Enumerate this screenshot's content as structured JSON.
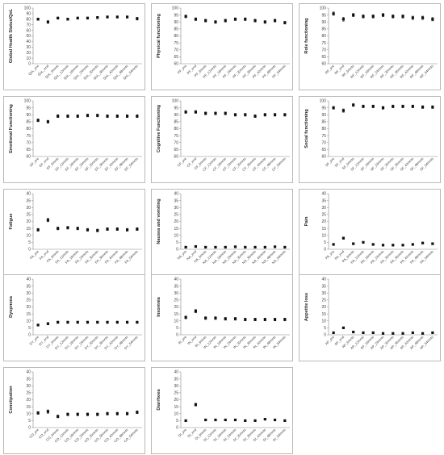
{
  "chart_data": [
    {
      "type": "scatter",
      "ylabel": "Global Health Status/QoL",
      "ylim": [
        0,
        100
      ],
      "yticks": [
        0,
        10,
        20,
        30,
        40,
        50,
        60,
        70,
        80,
        90,
        100
      ],
      "categories": [
        "QoL_pre",
        "QoL_end",
        "QoL_6mnts",
        "QoL_12mnts",
        "QoL_18mnts",
        "QoL_24mnts",
        "QoL_30mnts",
        "QoL_36mnts",
        "QoL_42mnts",
        "QoL_48mnts",
        "QoL_54mnts"
      ],
      "values": [
        80,
        75,
        82,
        80,
        82,
        82,
        83,
        84,
        84,
        84,
        81
      ],
      "err": [
        2,
        2.5,
        2,
        2,
        2,
        2,
        2,
        2,
        2,
        2,
        2.5
      ]
    },
    {
      "type": "scatter",
      "ylabel": "Physical functioning",
      "ylim": [
        60,
        100
      ],
      "yticks": [
        60,
        65,
        70,
        75,
        80,
        85,
        90,
        95,
        100
      ],
      "categories": [
        "PF_pre",
        "PF_end",
        "PF_6mnts",
        "PF_12mnts",
        "PF_18mnts",
        "PF_24mnts",
        "PF_30mnts",
        "PF_36mnts",
        "PF_42mnts",
        "PF_48mnts",
        "PF_54mnts"
      ],
      "values": [
        94,
        92,
        91,
        90,
        91,
        92,
        92,
        91,
        90,
        91,
        89.5
      ],
      "err": [
        1,
        1,
        1,
        1,
        1,
        1,
        1,
        1,
        1,
        1,
        1
      ]
    },
    {
      "type": "scatter",
      "ylabel": "Role functioning",
      "ylim": [
        60,
        100
      ],
      "yticks": [
        60,
        65,
        70,
        75,
        80,
        85,
        90,
        95,
        100
      ],
      "categories": [
        "RF_pre",
        "RF_end",
        "RF_6mnts",
        "RF_12mnts",
        "RF_18mnts",
        "RF_24mnts",
        "RF_30mnts",
        "RF_36mnts",
        "RF_42mnts",
        "RF_48mnts",
        "RF_54mnts"
      ],
      "values": [
        96,
        92,
        95,
        94,
        94,
        95,
        94,
        94,
        93,
        93,
        92
      ],
      "err": [
        1.2,
        1.4,
        1.2,
        1.2,
        1.2,
        1.2,
        1.2,
        1.2,
        1.2,
        1.2,
        1.2
      ]
    },
    {
      "type": "scatter",
      "ylabel": "Emotional Functioning",
      "ylim": [
        60,
        100
      ],
      "yticks": [
        60,
        65,
        70,
        75,
        80,
        85,
        90,
        95,
        100
      ],
      "categories": [
        "EF_pre",
        "EF_end",
        "EF_6mnts",
        "EF_12mnts",
        "EF_18mnts",
        "EF_24mnts",
        "EF_30mnts",
        "EF_36mnts",
        "EF_42mnts",
        "EF_48mnts",
        "EF_54mnts"
      ],
      "values": [
        86,
        85,
        89,
        89,
        89,
        89.5,
        89.5,
        89,
        89,
        89,
        89
      ],
      "err": [
        1,
        1,
        1,
        1,
        1,
        1,
        1,
        1,
        1,
        1,
        1
      ]
    },
    {
      "type": "scatter",
      "ylabel": "Cognitive Functioning",
      "ylim": [
        60,
        100
      ],
      "yticks": [
        60,
        65,
        70,
        75,
        80,
        85,
        90,
        95,
        100
      ],
      "categories": [
        "CF_pre",
        "CF_end",
        "CF_6mnts",
        "CF_12mnts",
        "CF_18mnts",
        "CF_24mnts",
        "CF_30mnts",
        "CF_36mnts",
        "CF_42mnts",
        "CF_48mnts",
        "CF_54mnts"
      ],
      "values": [
        92,
        92,
        91,
        91,
        91,
        90,
        90,
        89,
        90,
        90,
        90
      ],
      "err": [
        1,
        1,
        1,
        1,
        1,
        1,
        1,
        1,
        1,
        1,
        1
      ]
    },
    {
      "type": "scatter",
      "ylabel": "Social functioning",
      "ylim": [
        60,
        100
      ],
      "yticks": [
        60,
        65,
        70,
        75,
        80,
        85,
        90,
        95,
        100
      ],
      "categories": [
        "SF_pre",
        "SF_end",
        "SF_6mnts",
        "SF_12mnts",
        "SF_18mnts",
        "SF_24mnts",
        "SF_30mnts",
        "SF_36mnts",
        "SF_42mnts",
        "SF_48mnts",
        "SF_54mnts"
      ],
      "values": [
        95,
        93,
        97,
        96,
        96,
        95,
        96,
        96,
        96,
        95.5,
        95.5
      ],
      "err": [
        1,
        1.2,
        1,
        1,
        1,
        1,
        1,
        1,
        1,
        1,
        1
      ]
    },
    {
      "type": "scatter",
      "ylabel": "Fatigue",
      "ylim": [
        0,
        40
      ],
      "yticks": [
        0,
        5,
        10,
        15,
        20,
        25,
        30,
        35,
        40
      ],
      "categories": [
        "FA_pre",
        "FA_end",
        "FA_6mnts",
        "FA_12mnts",
        "FA_18mnts",
        "FA_24mnts",
        "FA_30mnts",
        "FA_36mnts",
        "FA_42mnts",
        "FA_48mnts",
        "FA_54mnts"
      ],
      "values": [
        14,
        21,
        15,
        15.5,
        15,
        14,
        13.5,
        14.5,
        14.5,
        14,
        14.5
      ],
      "err": [
        1,
        1.2,
        1,
        1,
        1,
        1,
        1,
        1,
        1,
        1,
        1
      ]
    },
    {
      "type": "scatter",
      "ylabel": "Nausea and vomiting",
      "ylim": [
        0,
        40
      ],
      "yticks": [
        0,
        5,
        10,
        15,
        20,
        25,
        30,
        35,
        40
      ],
      "categories": [
        "NA_pre",
        "NA_end",
        "NA_6mnts",
        "NA_12mnts",
        "NA_18mnts",
        "NA_24mnts",
        "NA_30mnts",
        "NA_36mnts",
        "NA_42mnts",
        "NA_48mnts",
        "NA_54mnts"
      ],
      "values": [
        1.5,
        2,
        1.5,
        1.5,
        1.5,
        1.8,
        1.5,
        1.5,
        1.5,
        1.8,
        1.5
      ],
      "err": [
        0.5,
        0.5,
        0.5,
        0.5,
        0.5,
        0.5,
        0.5,
        0.5,
        0.5,
        0.5,
        0.5
      ]
    },
    {
      "type": "scatter",
      "ylabel": "Pain",
      "ylim": [
        0,
        40
      ],
      "yticks": [
        0,
        5,
        10,
        15,
        20,
        25,
        30,
        35,
        40
      ],
      "categories": [
        "PA_pre",
        "PA_end",
        "PA_6mnts",
        "PA_12mnts",
        "PA_18mnts",
        "PA_24mnts",
        "PA_30mnts",
        "PA_36mnts",
        "PA_42mnts",
        "PA_48mnts",
        "PA_54mnts"
      ],
      "values": [
        3.5,
        8,
        4,
        5,
        3.5,
        3,
        3,
        3,
        3.5,
        4.5,
        4
      ],
      "err": [
        0.6,
        0.8,
        0.6,
        0.6,
        0.6,
        0.6,
        0.6,
        0.6,
        0.6,
        0.6,
        0.6
      ]
    },
    {
      "type": "scatter",
      "ylabel": "Dyspnoea",
      "ylim": [
        0,
        40
      ],
      "yticks": [
        0,
        5,
        10,
        15,
        20,
        25,
        30,
        35,
        40
      ],
      "categories": [
        "DY_pre",
        "DY_end",
        "DY_6mnts",
        "DY_12mnts",
        "DY_18mnts",
        "DY_24mnts",
        "DY_30mnts",
        "DY_36mnts",
        "DY_42mnts",
        "DY_48mnts",
        "DY_54mnts"
      ],
      "values": [
        7,
        8,
        9,
        9,
        9,
        9,
        9,
        9,
        9,
        9,
        9
      ],
      "err": [
        0.7,
        0.8,
        0.8,
        0.8,
        0.8,
        0.8,
        0.8,
        0.8,
        0.8,
        0.8,
        0.8
      ]
    },
    {
      "type": "scatter",
      "ylabel": "Insomnia",
      "ylim": [
        0,
        40
      ],
      "yticks": [
        0,
        5,
        10,
        15,
        20,
        25,
        30,
        35,
        40
      ],
      "categories": [
        "IN_pre",
        "IN_end",
        "IN_6mnts",
        "IN_12mnts",
        "IN_18mnts",
        "IN_24mnts",
        "IN_30mnts",
        "IN_36mnts",
        "IN_42mnts",
        "IN_48mnts",
        "IN_54mnts"
      ],
      "values": [
        12.5,
        17,
        12,
        12,
        11.5,
        11.5,
        11,
        11,
        11,
        11,
        11
      ],
      "err": [
        1,
        1.2,
        1,
        1,
        1,
        1,
        1,
        1,
        1,
        1,
        1
      ]
    },
    {
      "type": "scatter",
      "ylabel": "Appetite loss",
      "ylim": [
        0,
        40
      ],
      "yticks": [
        0,
        5,
        10,
        15,
        20,
        25,
        30,
        35,
        40
      ],
      "categories": [
        "AP_pre",
        "AP_end",
        "AP_6mnts",
        "AP_12mnts",
        "AP_18mnts",
        "AP_24mnts",
        "AP_30mnts",
        "AP_36mnts",
        "AP_42mnts",
        "AP_48mnts",
        "AP_54mnts"
      ],
      "values": [
        1.5,
        5,
        2,
        1.5,
        1.5,
        1,
        1,
        1,
        1.5,
        1,
        1.5
      ],
      "err": [
        0.5,
        0.7,
        0.5,
        0.5,
        0.5,
        0.5,
        0.5,
        0.5,
        0.5,
        0.5,
        0.5
      ]
    },
    {
      "type": "scatter",
      "ylabel": "Constipation",
      "ylim": [
        0,
        40
      ],
      "yticks": [
        0,
        5,
        10,
        15,
        20,
        25,
        30,
        35,
        40
      ],
      "categories": [
        "CO_pre",
        "CO_end",
        "CO_6mnts",
        "CO_12mnts",
        "CO_18mnts",
        "CO_24mnts",
        "CO_30mnts",
        "CO_36mnts",
        "CO_42mnts",
        "CO_48mnts",
        "CO_54mnts"
      ],
      "values": [
        10.5,
        11.5,
        8,
        9.5,
        9.5,
        9.5,
        9.5,
        10,
        10,
        10,
        11
      ],
      "err": [
        1,
        1.2,
        1,
        1,
        1,
        1,
        1,
        1,
        1,
        1,
        1
      ]
    },
    {
      "type": "scatter",
      "ylabel": "Diarrhoea",
      "ylim": [
        0,
        40
      ],
      "yticks": [
        0,
        5,
        10,
        15,
        20,
        25,
        30,
        35,
        40
      ],
      "categories": [
        "DI_pre",
        "DI_end",
        "DI_6mnts",
        "DI_12mnts",
        "DI_18mnts",
        "DI_24mnts",
        "DI_30mnts",
        "DI_36mnts",
        "DI_42mnts",
        "DI_48mnts",
        "DI_54mnts"
      ],
      "values": [
        5,
        16.5,
        5.5,
        5.5,
        5.5,
        5.5,
        5,
        5,
        6,
        5.5,
        5
      ],
      "err": [
        0.6,
        1,
        0.6,
        0.6,
        0.6,
        0.6,
        0.6,
        0.6,
        0.6,
        0.6,
        0.6
      ]
    }
  ]
}
